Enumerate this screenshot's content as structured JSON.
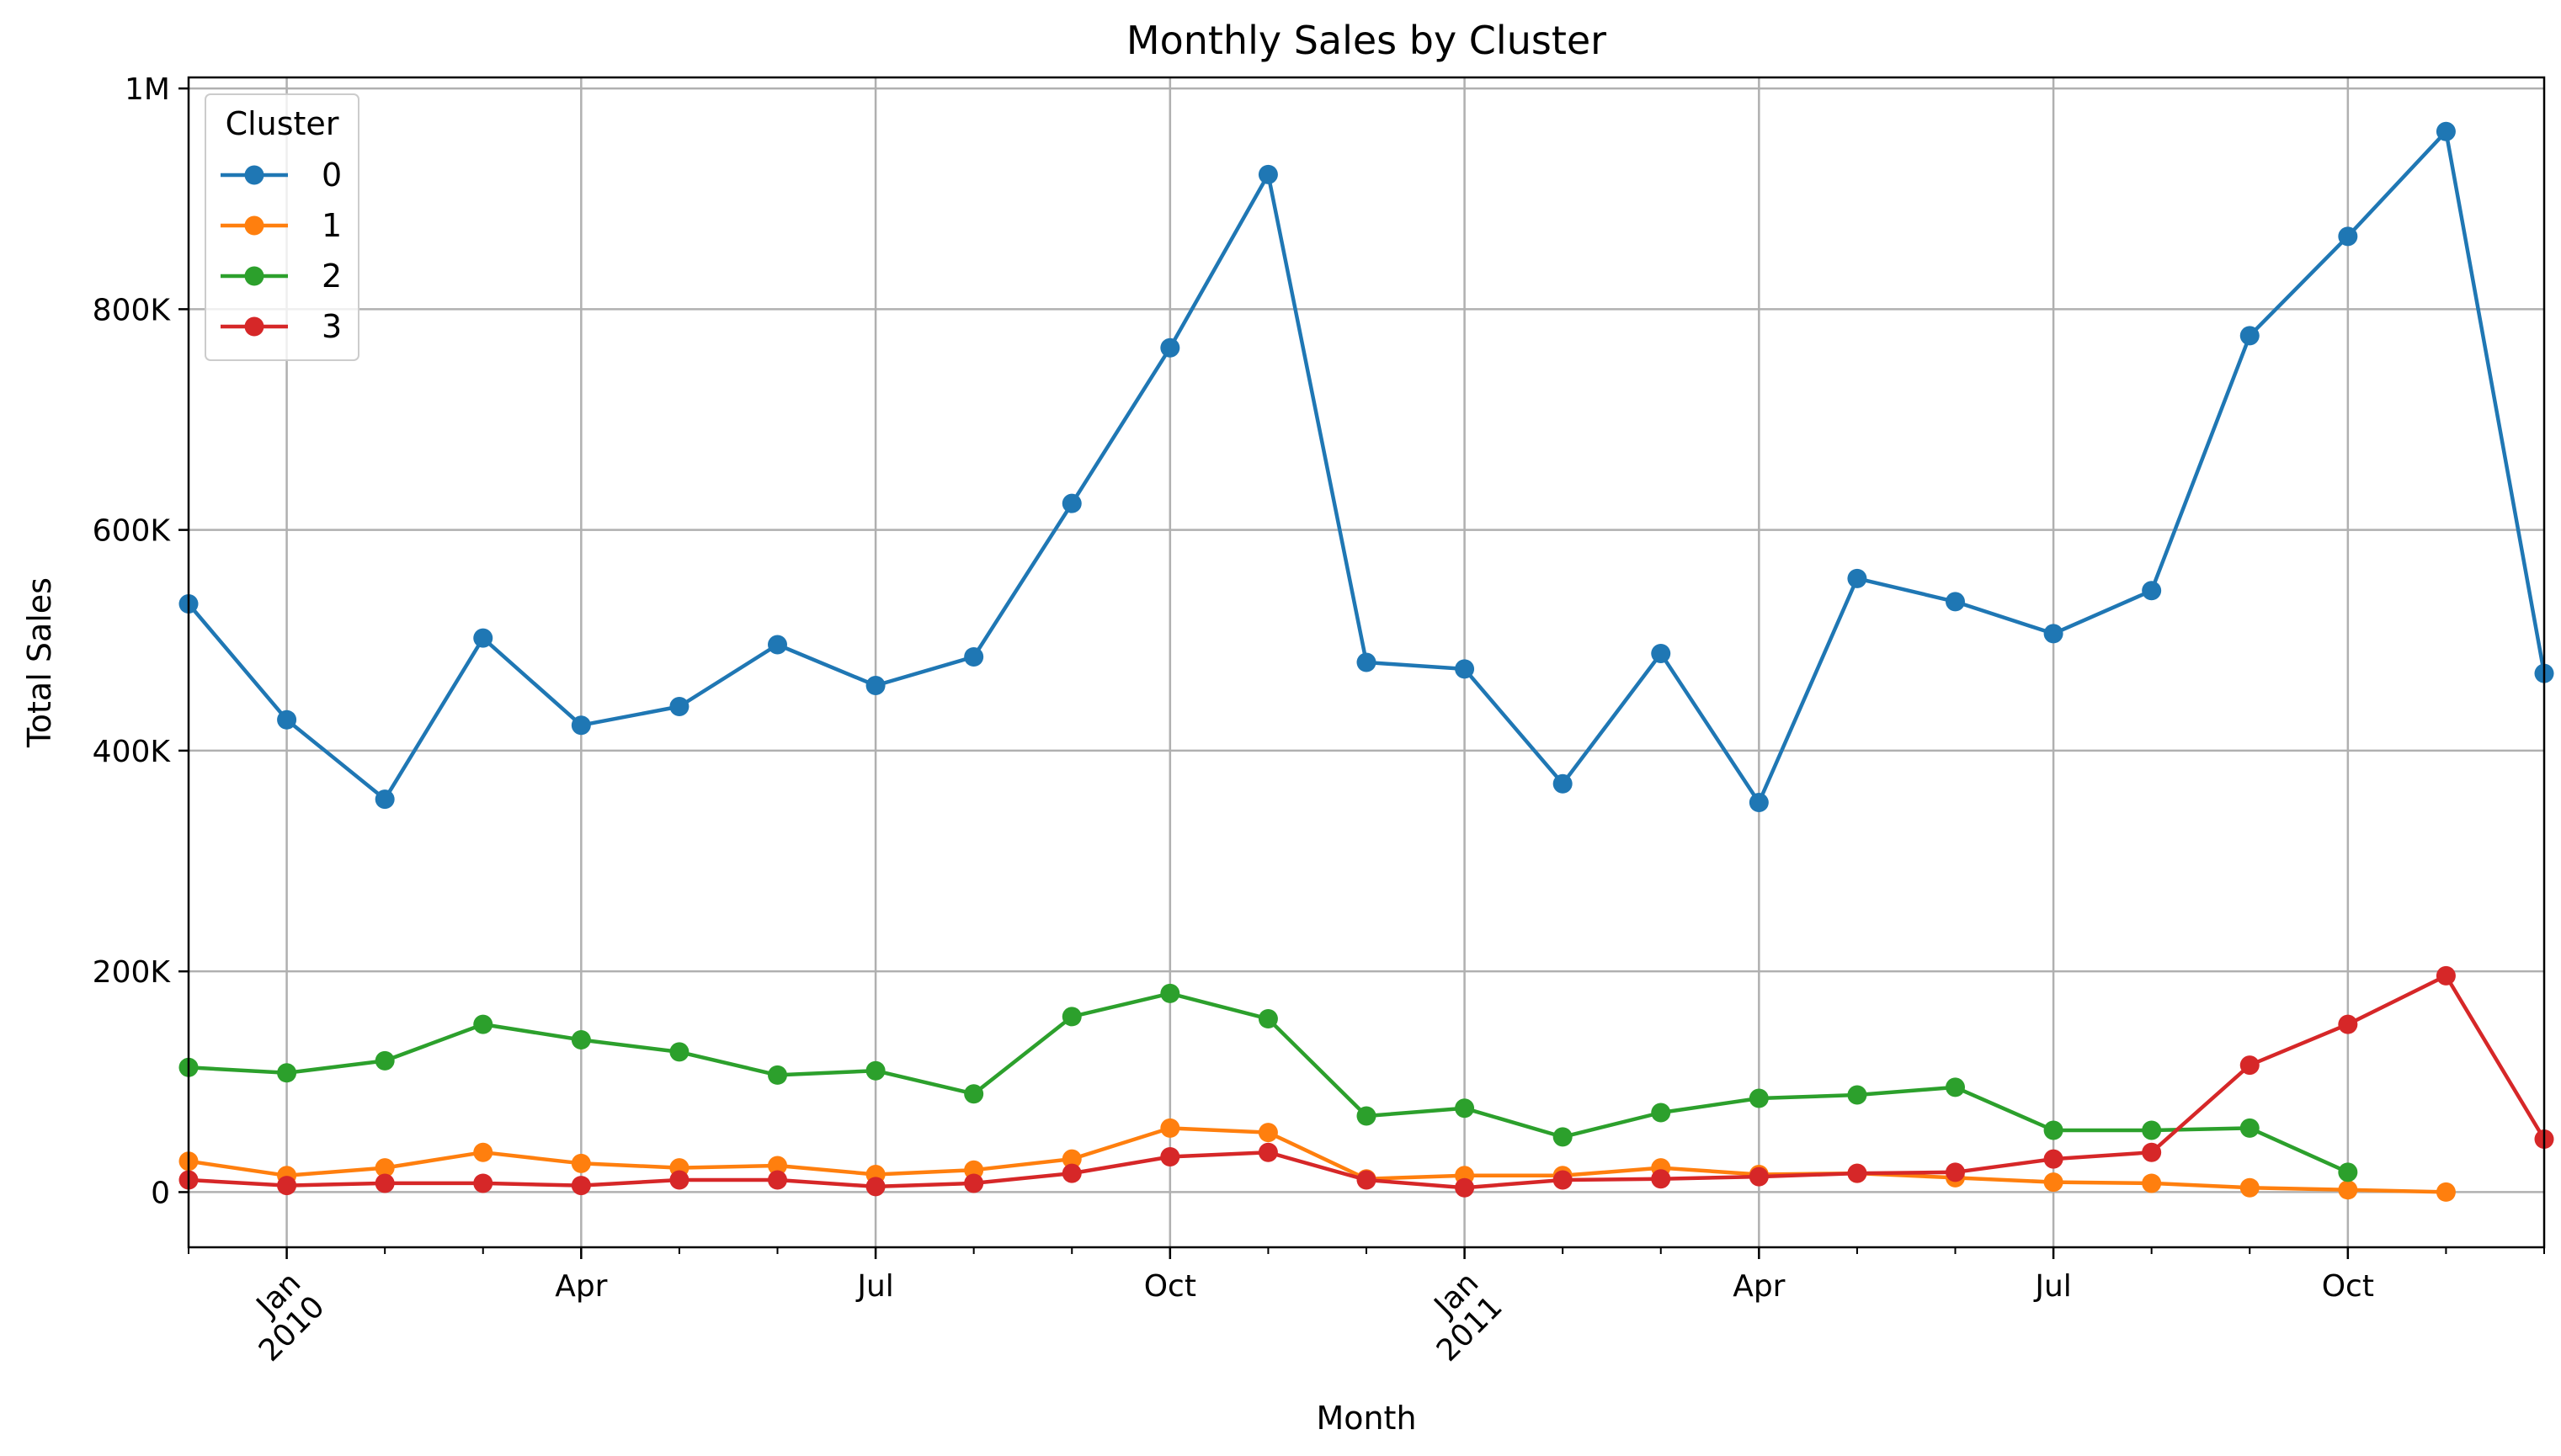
{
  "chart_data": {
    "type": "line",
    "title": "Monthly Sales by Cluster",
    "xlabel": "Month",
    "ylabel": "Total Sales",
    "x": [
      "2009-12",
      "2010-01",
      "2010-02",
      "2010-03",
      "2010-04",
      "2010-05",
      "2010-06",
      "2010-07",
      "2010-08",
      "2010-09",
      "2010-10",
      "2010-11",
      "2010-12",
      "2011-01",
      "2011-02",
      "2011-03",
      "2011-04",
      "2011-05",
      "2011-06",
      "2011-07",
      "2011-08",
      "2011-09",
      "2011-10",
      "2011-11",
      "2011-12"
    ],
    "xlim": [
      "2009-12",
      "2011-12"
    ],
    "ylim": [
      -50000,
      1010000
    ],
    "y_ticks": [
      0,
      200000,
      400000,
      600000,
      800000,
      1000000
    ],
    "y_tick_labels": [
      "0",
      "200K",
      "400K",
      "600K",
      "800K",
      "1M"
    ],
    "x_major_ticks": [
      {
        "x": "2010-01",
        "label": "Jan\n2010"
      },
      {
        "x": "2010-04",
        "label": "Apr"
      },
      {
        "x": "2010-07",
        "label": "Jul"
      },
      {
        "x": "2010-10",
        "label": "Oct"
      },
      {
        "x": "2011-01",
        "label": "Jan\n2011"
      },
      {
        "x": "2011-04",
        "label": "Apr"
      },
      {
        "x": "2011-07",
        "label": "Jul"
      },
      {
        "x": "2011-10",
        "label": "Oct"
      }
    ],
    "grid": true,
    "legend": {
      "title": "Cluster",
      "placement": "top-left"
    },
    "series": [
      {
        "name": "0",
        "color": "#1f77b4",
        "values": [
          533000,
          428000,
          356000,
          502000,
          423000,
          440000,
          496000,
          459000,
          485000,
          624000,
          765000,
          922000,
          480000,
          474000,
          370000,
          488000,
          353000,
          556000,
          535000,
          506000,
          545000,
          776000,
          866000,
          961000,
          470000
        ]
      },
      {
        "name": "1",
        "color": "#ff7f0e",
        "values": [
          28000,
          15000,
          22000,
          36000,
          26000,
          22000,
          24000,
          16000,
          20000,
          30000,
          58000,
          54000,
          12000,
          15000,
          15000,
          22000,
          16000,
          17000,
          13000,
          9000,
          8000,
          4000,
          2000,
          0,
          null
        ]
      },
      {
        "name": "2",
        "color": "#2ca02c",
        "values": [
          113000,
          108000,
          119000,
          152000,
          138000,
          127000,
          106000,
          110000,
          89000,
          159000,
          180000,
          157000,
          69000,
          76000,
          50000,
          72000,
          85000,
          88000,
          95000,
          56000,
          56000,
          58000,
          18000,
          null,
          null
        ]
      },
      {
        "name": "3",
        "color": "#d62728",
        "values": [
          11000,
          6000,
          8000,
          8000,
          6000,
          11000,
          11000,
          5000,
          8000,
          17000,
          32000,
          36000,
          11000,
          4000,
          11000,
          12000,
          14000,
          17000,
          18000,
          30000,
          36000,
          115000,
          152000,
          196000,
          48000
        ]
      }
    ]
  }
}
